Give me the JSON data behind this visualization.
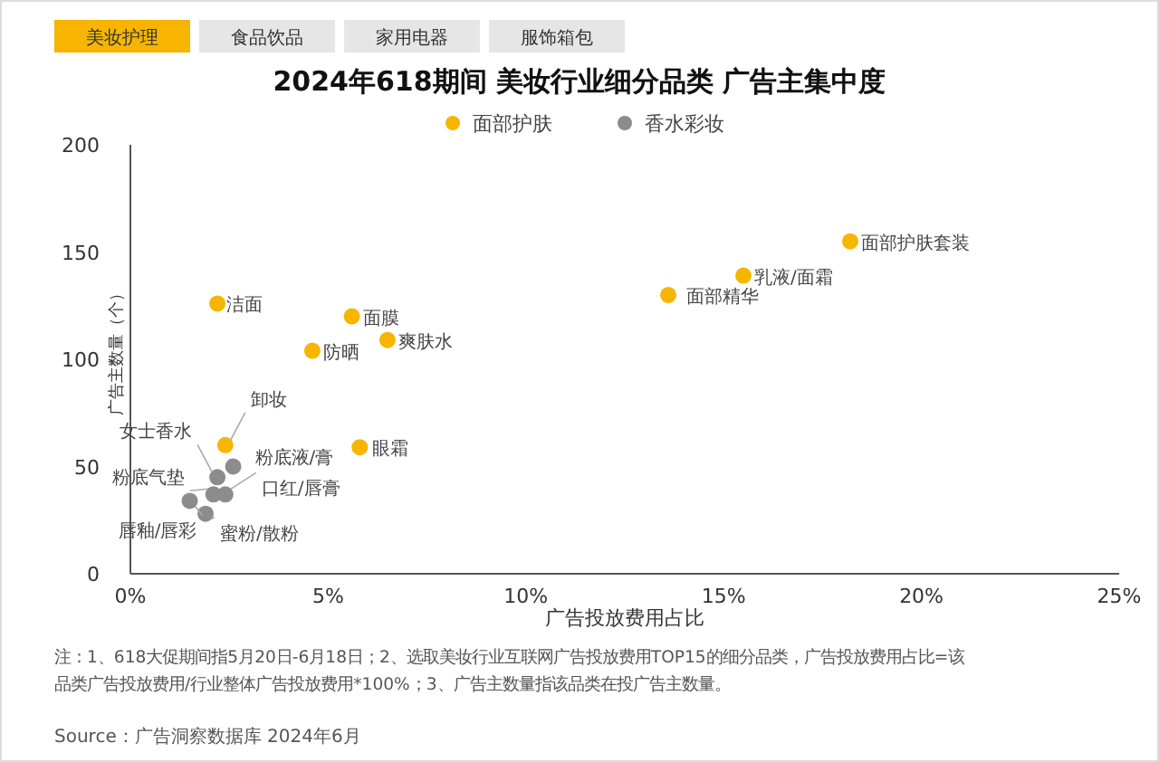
{
  "chart_data": {
    "type": "scatter",
    "title": "2024年618期间 美妆行业细分品类 广告主集中度",
    "xlabel": "广告投放费用占比",
    "ylabel": "广告主数量（个）",
    "xlim": [
      0,
      25
    ],
    "xticks": [
      {
        "value": 0,
        "label": "0%"
      },
      {
        "value": 5,
        "label": "5%"
      },
      {
        "value": 10,
        "label": "10%"
      },
      {
        "value": 15,
        "label": "15%"
      },
      {
        "value": 20,
        "label": "20%"
      },
      {
        "value": 25,
        "label": "25%"
      }
    ],
    "ylim": [
      0,
      200
    ],
    "yticks": [
      0,
      50,
      100,
      150,
      200
    ],
    "legend": "top",
    "marker": "circle",
    "grid": false,
    "series": [
      {
        "name": "面部护肤",
        "color": "#f7b500",
        "x": [
          18.2,
          15.5,
          13.6,
          2.2,
          5.6,
          6.5,
          4.6,
          2.4,
          5.8
        ],
        "values": [
          155,
          139,
          130,
          126,
          120,
          109,
          104,
          60,
          59
        ]
      },
      {
        "name": "香水彩妆",
        "color": "#8c8c8c",
        "x": [
          2.2,
          2.6,
          2.1,
          2.4,
          1.5,
          1.9
        ],
        "values": [
          45,
          50,
          37,
          37,
          34,
          28
        ]
      }
    ],
    "annotations": [
      "美妆护理",
      "食品饮品",
      "家用电器",
      "服饰箱包",
      {
        "text": "面部护肤套装",
        "x": 18.2,
        "y": 155
      },
      {
        "text": "乳液/面霜",
        "x": 15.5,
        "y": 139
      },
      {
        "text": "面部精华",
        "x": 13.6,
        "y": 130
      },
      {
        "text": "洁面",
        "x": 2.2,
        "y": 126
      },
      {
        "text": "面膜",
        "x": 5.6,
        "y": 120
      },
      {
        "text": "爽肤水",
        "x": 6.5,
        "y": 109
      },
      {
        "text": "防晒",
        "x": 4.6,
        "y": 104
      },
      {
        "text": "卸妆",
        "x": 2.4,
        "y": 60
      },
      {
        "text": "眼霜",
        "x": 5.8,
        "y": 59
      },
      {
        "text": "女士香水",
        "x": 2.2,
        "y": 45
      },
      {
        "text": "粉底液/膏",
        "x": 2.6,
        "y": 50
      },
      {
        "text": "粉底气垫",
        "x": 2.1,
        "y": 37
      },
      {
        "text": "口红/唇膏",
        "x": 2.4,
        "y": 37
      },
      {
        "text": "唇釉/唇彩",
        "x": 1.5,
        "y": 34
      },
      {
        "text": "蜜粉/散粉",
        "x": 1.9,
        "y": 28
      },
      "注：1、618大促期间指5月20日-6月18日；2、选取美妆行业互联网广告投放费用TOP15的细分品类，广告投放费用占比=该",
      "品类广告投放费用/行业整体广告投放费用*100%；3、广告主数量指该品类在投广告主数量。",
      "Source：广告洞察数据库 2024年6月"
    ]
  }
}
